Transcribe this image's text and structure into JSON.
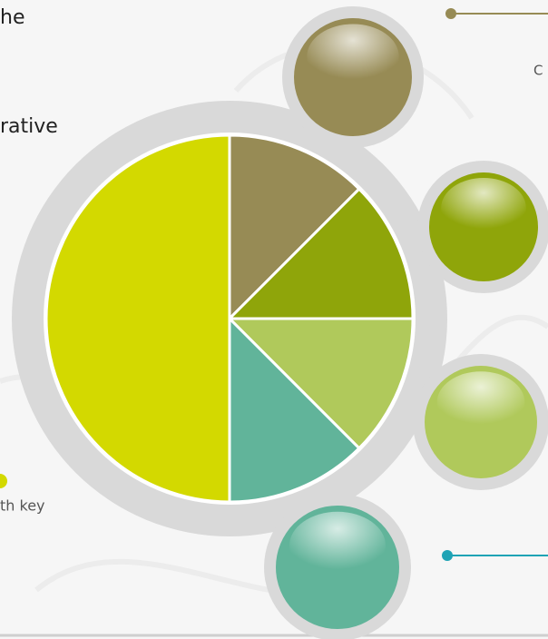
{
  "chart_data": {
    "type": "pie",
    "values": [
      12.5,
      12.5,
      12.5,
      12.5,
      50
    ],
    "colors": [
      "#978b55",
      "#8fa50a",
      "#b0c95b",
      "#61b49a",
      "#d3d900"
    ],
    "annotations": [
      "he",
      "rative",
      "C",
      "th key"
    ]
  }
}
